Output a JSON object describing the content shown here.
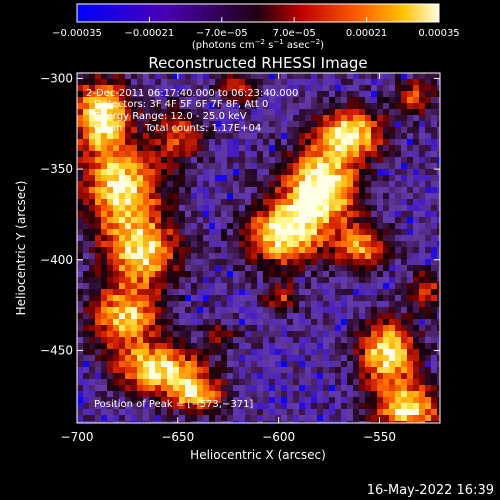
{
  "chart_data": {
    "type": "heatmap",
    "title": "Reconstructed RHESSI Image",
    "xlabel": "Heliocentric X (arcsec)",
    "ylabel": "Heliocentric Y (arcsec)",
    "xlim": [
      -700,
      -520
    ],
    "ylim": [
      -490,
      -297
    ],
    "xticks": [
      -700,
      -650,
      -600,
      -550
    ],
    "yticks": [
      -300,
      -350,
      -400,
      -450
    ],
    "xtick_labels": [
      "−700",
      "−650",
      "−600",
      "−550"
    ],
    "ytick_labels": [
      "−300",
      "−350",
      "−400",
      "−450"
    ],
    "grid": false,
    "colorbar": {
      "range": [
        -0.00035,
        0.00035
      ],
      "ticks": [
        -0.00035,
        -0.00021,
        -7e-05,
        7e-05,
        0.00021,
        0.00035
      ],
      "tick_labels": [
        "−0.00035",
        "−0.00021",
        "−7.0e−05",
        "7.0e−05",
        "0.00021",
        "0.00035"
      ],
      "units_prefix": "(photons cm",
      "units_exp1": "−2",
      "units_mid": " s",
      "units_exp2": "−1",
      "units_mid2": " asec",
      "units_exp3": "−2",
      "units_suffix": ")"
    },
    "annotations": {
      "time_range": "2-Dec-2011 06:17:40.000 to 06:23:40.000",
      "detectors": "Detectors: 3F 4F 5F 6F 7F 8F, Att 0",
      "energy": "Energy Range: 12.0 - 25.0 keV",
      "method": "Clean",
      "counts": "Total counts: 1.17E+04",
      "peak": "Position of Peak = [−573,−371]"
    },
    "peak": {
      "x": -573,
      "y": -371
    },
    "sources": [
      {
        "x": -688,
        "y": -320,
        "sx": 10,
        "sy": 14,
        "amp": 0.9
      },
      {
        "x": -678,
        "y": -360,
        "sx": 14,
        "sy": 16,
        "amp": 0.85
      },
      {
        "x": -668,
        "y": -395,
        "sx": 13,
        "sy": 13,
        "amp": 0.8
      },
      {
        "x": -676,
        "y": -430,
        "sx": 12,
        "sy": 12,
        "amp": 0.8
      },
      {
        "x": -660,
        "y": -458,
        "sx": 15,
        "sy": 9,
        "amp": 0.85
      },
      {
        "x": -642,
        "y": -472,
        "sx": 10,
        "sy": 7,
        "amp": 0.7
      },
      {
        "x": -650,
        "y": -330,
        "sx": 9,
        "sy": 10,
        "amp": 0.5
      },
      {
        "x": -598,
        "y": -385,
        "sx": 13,
        "sy": 12,
        "amp": 0.9
      },
      {
        "x": -580,
        "y": -360,
        "sx": 13,
        "sy": 14,
        "amp": 1.0
      },
      {
        "x": -566,
        "y": -330,
        "sx": 12,
        "sy": 10,
        "amp": 0.85
      },
      {
        "x": -560,
        "y": -392,
        "sx": 9,
        "sy": 9,
        "amp": 0.65
      },
      {
        "x": -600,
        "y": -420,
        "sx": 6,
        "sy": 6,
        "amp": 0.45
      },
      {
        "x": -547,
        "y": -450,
        "sx": 10,
        "sy": 13,
        "amp": 0.9
      },
      {
        "x": -537,
        "y": -480,
        "sx": 12,
        "sy": 9,
        "amp": 0.85
      },
      {
        "x": -534,
        "y": -310,
        "sx": 7,
        "sy": 7,
        "amp": 0.5
      },
      {
        "x": -620,
        "y": -305,
        "sx": 7,
        "sy": 6,
        "amp": 0.45
      },
      {
        "x": -528,
        "y": -415,
        "sx": 6,
        "sy": 8,
        "amp": 0.45
      },
      {
        "x": -630,
        "y": -440,
        "sx": 6,
        "sy": 5,
        "amp": 0.35
      }
    ]
  },
  "footer": {
    "timestamp": "16-May-2022 16:39"
  }
}
